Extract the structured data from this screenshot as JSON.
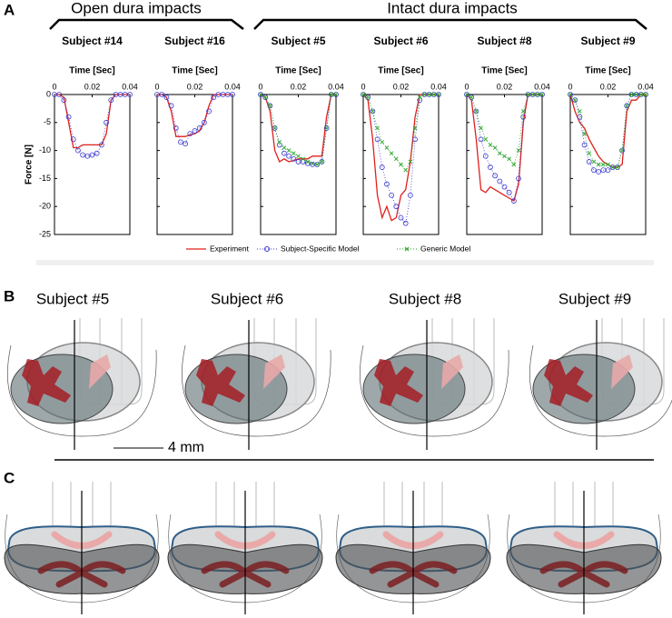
{
  "panels": {
    "A": {
      "label": "A",
      "groups": [
        "Open dura impacts",
        "Intact dura impacts"
      ]
    },
    "B": {
      "label": "B",
      "subjects": [
        "Subject #5",
        "Subject #6",
        "Subject #8",
        "Subject #9"
      ],
      "scale_bar": "4 mm"
    },
    "C": {
      "label": "C"
    }
  },
  "chart_data": [
    {
      "type": "line",
      "title": "Subject #14",
      "xlabel": "Time [Sec]",
      "ylabel": "Force [N]",
      "ytick_labels": true,
      "x": [
        0,
        0.0025,
        0.005,
        0.0075,
        0.01,
        0.0125,
        0.015,
        0.0175,
        0.02,
        0.0225,
        0.025,
        0.0275,
        0.03,
        0.0325,
        0.035,
        0.0375,
        0.04
      ],
      "xlim": [
        0,
        0.04
      ],
      "xticks": [
        0,
        0.02,
        0.04
      ],
      "ylim": [
        -25,
        0
      ],
      "yticks": [
        -25,
        -20,
        -15,
        -10,
        -5,
        0
      ],
      "series": [
        {
          "name": "Experiment",
          "color": "#e0201b",
          "style": "solid",
          "values": [
            0,
            0,
            -0.5,
            -5,
            -9.5,
            -9.5,
            -9,
            -9,
            -9,
            -9,
            -9,
            -7,
            -1,
            0,
            0,
            0,
            0
          ]
        },
        {
          "name": "Subject-Specific Model",
          "color": "#3b3bd0",
          "style": "circle",
          "values": [
            0,
            0,
            -1,
            -4,
            -8,
            -10,
            -10.8,
            -11,
            -10.8,
            -10.5,
            -9,
            -5,
            -1,
            0,
            0,
            0,
            0
          ]
        }
      ]
    },
    {
      "type": "line",
      "title": "Subject #16",
      "xlabel": "Time [Sec]",
      "ytick_labels": false,
      "x": [
        0,
        0.0025,
        0.005,
        0.0075,
        0.01,
        0.0125,
        0.015,
        0.0175,
        0.02,
        0.0225,
        0.025,
        0.0275,
        0.03,
        0.0325,
        0.035,
        0.0375,
        0.04
      ],
      "xlim": [
        0,
        0.04
      ],
      "xticks": [
        0,
        0.02,
        0.04
      ],
      "ylim": [
        -25,
        0
      ],
      "yticks": [
        -25,
        -20,
        -15,
        -10,
        -5,
        0
      ],
      "series": [
        {
          "name": "Experiment",
          "color": "#e0201b",
          "style": "solid",
          "values": [
            0,
            0,
            -0.5,
            -3,
            -7.5,
            -7.5,
            -7.5,
            -7.2,
            -7,
            -6.5,
            -5,
            -2,
            0,
            0,
            0,
            0,
            0
          ]
        },
        {
          "name": "Subject-Specific Model",
          "color": "#3b3bd0",
          "style": "circle",
          "values": [
            0,
            0,
            -0.5,
            -2,
            -6,
            -8.5,
            -8.8,
            -7,
            -6.5,
            -6,
            -5,
            -3,
            -0.5,
            0,
            0,
            0,
            0
          ]
        }
      ]
    },
    {
      "type": "line",
      "title": "Subject #5",
      "xlabel": "Time [Sec]",
      "ytick_labels": false,
      "x": [
        0,
        0.0025,
        0.005,
        0.0075,
        0.01,
        0.0125,
        0.015,
        0.0175,
        0.02,
        0.0225,
        0.025,
        0.0275,
        0.03,
        0.0325,
        0.035,
        0.0375,
        0.04
      ],
      "xlim": [
        0,
        0.04
      ],
      "xticks": [
        0,
        0.02,
        0.04
      ],
      "ylim": [
        -25,
        0
      ],
      "yticks": [
        -25,
        -20,
        -15,
        -10,
        -5,
        0
      ],
      "series": [
        {
          "name": "Experiment",
          "color": "#e0201b",
          "style": "solid",
          "values": [
            0,
            -0.5,
            -3,
            -10,
            -12,
            -11.5,
            -12,
            -11.8,
            -11.5,
            -11.5,
            -11.5,
            -11,
            -11,
            -11,
            -4,
            0,
            0
          ]
        },
        {
          "name": "Subject-Specific Model",
          "color": "#3b3bd0",
          "style": "circle",
          "values": [
            0,
            -0.5,
            -2,
            -6,
            -9,
            -10.5,
            -11,
            -11.5,
            -12,
            -12,
            -12.3,
            -12.5,
            -12.5,
            -12,
            -6,
            0,
            0
          ]
        },
        {
          "name": "Generic Model",
          "color": "#2aa52a",
          "style": "cross",
          "values": [
            0,
            -0.5,
            -2,
            -6,
            -8.5,
            -9.5,
            -10,
            -10.5,
            -11,
            -11.5,
            -12,
            -12.3,
            -12.5,
            -12,
            -6,
            0,
            0
          ]
        }
      ]
    },
    {
      "type": "line",
      "title": "Subject #6",
      "xlabel": "Time [Sec]",
      "ytick_labels": false,
      "x": [
        0,
        0.0025,
        0.005,
        0.0075,
        0.01,
        0.0125,
        0.015,
        0.0175,
        0.02,
        0.0225,
        0.025,
        0.0275,
        0.03,
        0.0325,
        0.035,
        0.0375,
        0.04
      ],
      "xlim": [
        0,
        0.04
      ],
      "xticks": [
        0,
        0.02,
        0.04
      ],
      "ylim": [
        -25,
        0
      ],
      "yticks": [
        -25,
        -20,
        -15,
        -10,
        -5,
        0
      ],
      "series": [
        {
          "name": "Experiment",
          "color": "#e0201b",
          "style": "solid",
          "values": [
            0,
            -1,
            -8,
            -18,
            -22,
            -20,
            -22.5,
            -22,
            -18,
            -17,
            -12,
            -4,
            0,
            0,
            0,
            0,
            0
          ]
        },
        {
          "name": "Subject-Specific Model",
          "color": "#3b3bd0",
          "style": "circle",
          "values": [
            0,
            -0.5,
            -3,
            -8,
            -13,
            -16,
            -18,
            -20,
            -22,
            -23,
            -18,
            -8,
            -1,
            0,
            0,
            0,
            0
          ]
        },
        {
          "name": "Generic Model",
          "color": "#2aa52a",
          "style": "cross",
          "values": [
            0,
            -0.5,
            -3,
            -6,
            -8.5,
            -9.5,
            -10.5,
            -11.5,
            -12.5,
            -13.5,
            -12,
            -6,
            -0.5,
            0,
            0,
            0,
            0
          ]
        }
      ]
    },
    {
      "type": "line",
      "title": "Subject #8",
      "xlabel": "Time [Sec]",
      "ytick_labels": false,
      "x": [
        0,
        0.0025,
        0.005,
        0.0075,
        0.01,
        0.0125,
        0.015,
        0.0175,
        0.02,
        0.0225,
        0.025,
        0.0275,
        0.03,
        0.0325,
        0.035,
        0.0375,
        0.04
      ],
      "xlim": [
        0,
        0.04
      ],
      "xticks": [
        0,
        0.02,
        0.04
      ],
      "ylim": [
        -25,
        0
      ],
      "yticks": [
        -25,
        -20,
        -15,
        -10,
        -5,
        0
      ],
      "series": [
        {
          "name": "Experiment",
          "color": "#e0201b",
          "style": "solid",
          "values": [
            0,
            -1,
            -8,
            -17,
            -17.5,
            -16.5,
            -17,
            -17.5,
            -18,
            -18.5,
            -19,
            -16,
            -5,
            0,
            0,
            0,
            0
          ]
        },
        {
          "name": "Subject-Specific Model",
          "color": "#3b3bd0",
          "style": "circle",
          "values": [
            0,
            -0.5,
            -3,
            -8,
            -11,
            -13,
            -14.5,
            -15.5,
            -16.5,
            -17.5,
            -19,
            -15,
            -4,
            0,
            0,
            0,
            0
          ]
        },
        {
          "name": "Generic Model",
          "color": "#2aa52a",
          "style": "cross",
          "values": [
            0,
            -0.5,
            -3,
            -6,
            -8,
            -9,
            -9.5,
            -10.5,
            -11,
            -11.5,
            -12.5,
            -10,
            -3,
            0,
            0,
            0,
            0
          ]
        }
      ]
    },
    {
      "type": "line",
      "title": "Subject #9",
      "xlabel": "Time [Sec]",
      "ytick_labels": false,
      "x": [
        0,
        0.0025,
        0.005,
        0.0075,
        0.01,
        0.0125,
        0.015,
        0.0175,
        0.02,
        0.0225,
        0.025,
        0.0275,
        0.03,
        0.0325,
        0.035,
        0.0375,
        0.04
      ],
      "xlim": [
        0,
        0.04
      ],
      "xticks": [
        0,
        0.02,
        0.04
      ],
      "ylim": [
        -25,
        0
      ],
      "yticks": [
        -25,
        -20,
        -15,
        -10,
        -5,
        0
      ],
      "series": [
        {
          "name": "Experiment",
          "color": "#e0201b",
          "style": "solid",
          "values": [
            0,
            -3,
            -5,
            -6,
            -8,
            -9.5,
            -11,
            -12,
            -12.5,
            -13,
            -13,
            -12.5,
            -3,
            -1,
            -1,
            0,
            0
          ]
        },
        {
          "name": "Subject-Specific Model",
          "color": "#3b3bd0",
          "style": "circle",
          "values": [
            0,
            -1,
            -4,
            -9,
            -12,
            -13.5,
            -13.8,
            -13.5,
            -13.5,
            -13,
            -13,
            -10,
            -2,
            0,
            0,
            0,
            0
          ]
        },
        {
          "name": "Generic Model",
          "color": "#2aa52a",
          "style": "cross",
          "values": [
            0,
            -1,
            -3,
            -7,
            -10.5,
            -12,
            -12.5,
            -12.5,
            -12.5,
            -13,
            -13,
            -10,
            -2,
            0,
            0,
            0,
            0
          ]
        }
      ]
    }
  ]
}
